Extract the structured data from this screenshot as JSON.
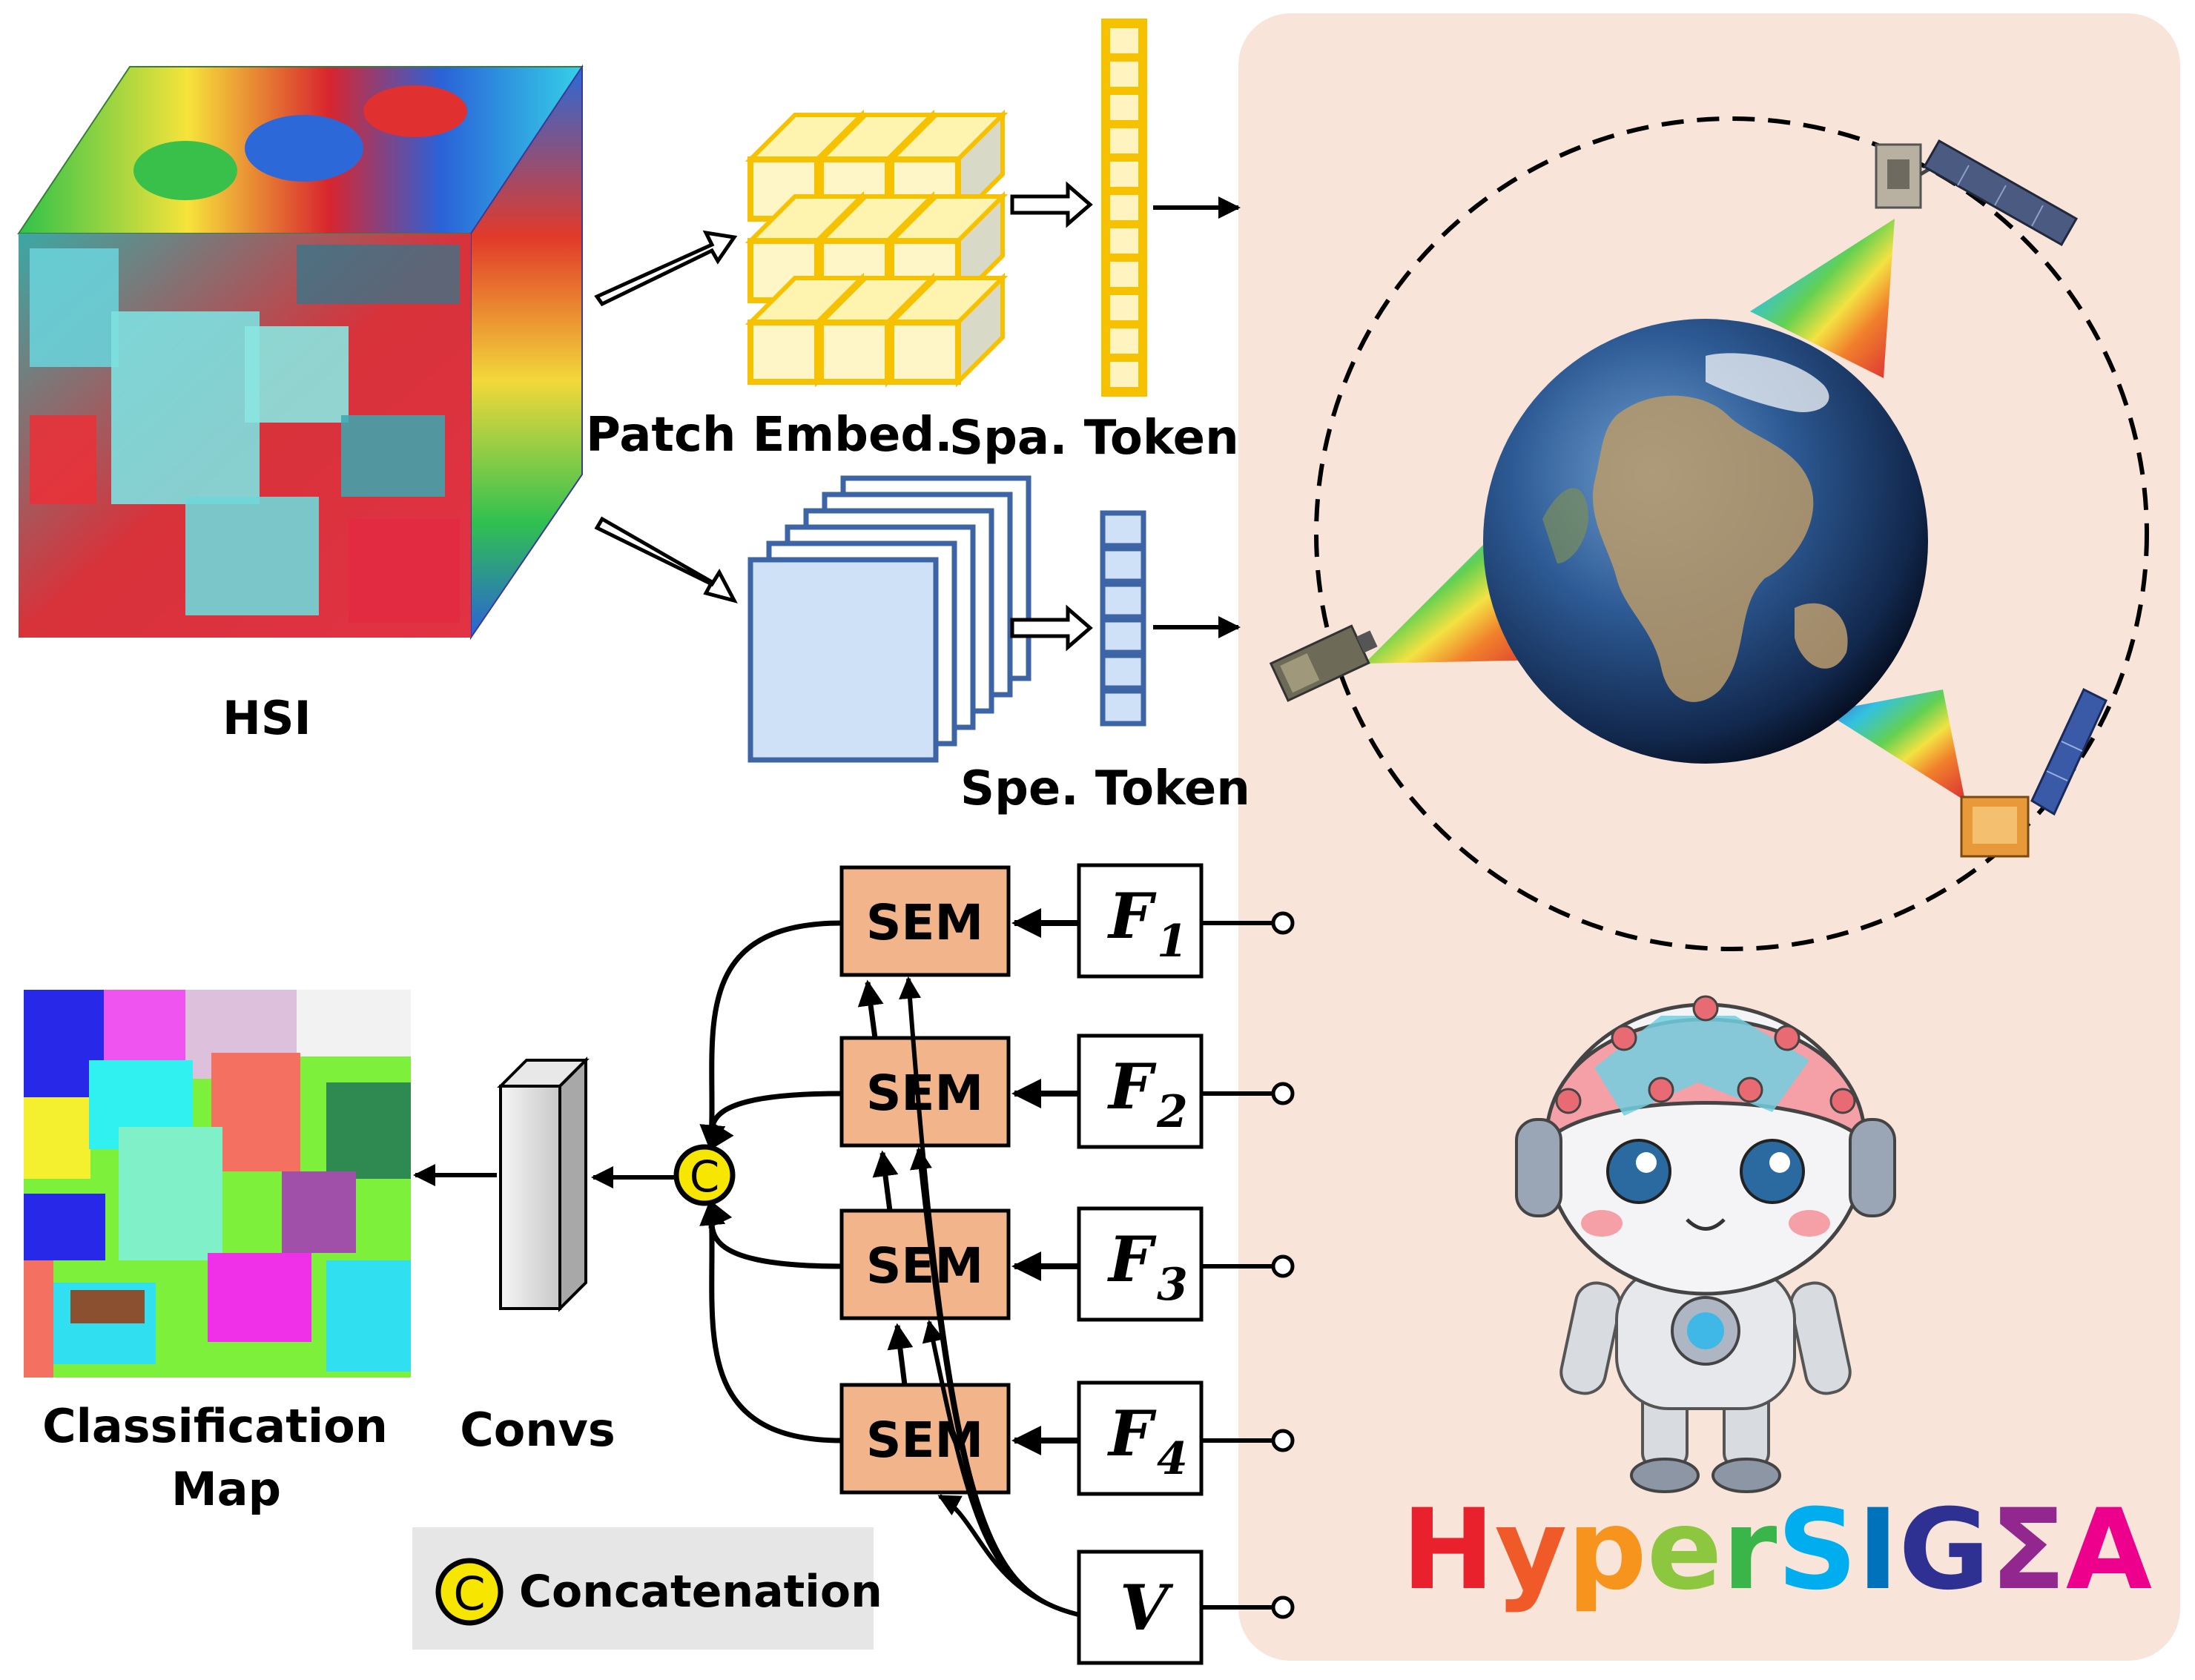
{
  "labels": {
    "hsi": "HSI",
    "patch_embed": "Patch Embed.",
    "spa_token": "Spa. Token",
    "spe_token": "Spe. Token",
    "classification_map_line1": "Classification",
    "classification_map_line2": "Map",
    "convs": "Convs",
    "sem": "SEM",
    "concat_symbol": "C",
    "legend_concatenation": "Concatenation",
    "features": [
      {
        "letter": "F",
        "sub": "1"
      },
      {
        "letter": "F",
        "sub": "2"
      },
      {
        "letter": "F",
        "sub": "3"
      },
      {
        "letter": "F",
        "sub": "4"
      },
      {
        "letter": "V",
        "sub": ""
      }
    ],
    "logo": [
      "H",
      "y",
      "p",
      "e",
      "r",
      "S",
      "I",
      "G",
      "Σ",
      "A"
    ]
  },
  "colors": {
    "panel_bg": "#f8e4d8",
    "sem_fill": "#f2b48a",
    "patch_yellow": "#f6c200",
    "token_blue": "#3d64a5",
    "spectral_fill": "#cfe1f7",
    "concat_yellow": "#f6e600",
    "logo": [
      "#e8212d",
      "#f05a28",
      "#f7941d",
      "#8dc63f",
      "#39b54a",
      "#00aeef",
      "#0072bc",
      "#2e3192",
      "#92278f",
      "#ec008c"
    ]
  },
  "icons": [
    "earth-globe-icon",
    "satellite-icon",
    "robot-mascot-icon"
  ]
}
